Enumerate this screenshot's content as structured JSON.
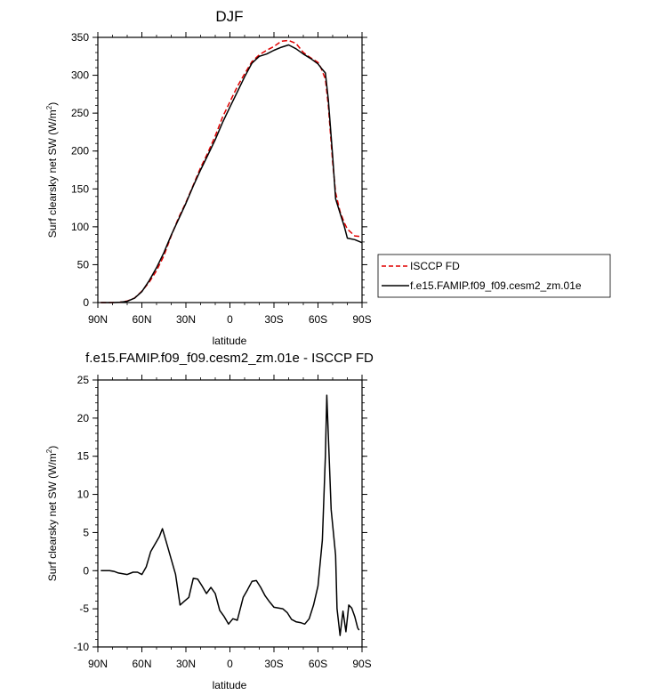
{
  "chart_data": [
    {
      "type": "line",
      "title": "DJF",
      "xlabel": "latitude",
      "ylabel": "Surf clearsky net SW (W/m²)",
      "ylabel_main": "Surf clearsky net SW (W/m",
      "ylabel_sup": "2",
      "ylabel_close": ")",
      "xlim": [
        -90,
        90
      ],
      "ylim": [
        0,
        350
      ],
      "x_ticks": [
        -90,
        -60,
        -30,
        0,
        30,
        60,
        90
      ],
      "x_tick_labels": [
        "90N",
        "60N",
        "30N",
        "0",
        "30S",
        "60S",
        "90S"
      ],
      "y_ticks": [
        0,
        50,
        100,
        150,
        200,
        250,
        300,
        350
      ],
      "y_tick_labels": [
        "0",
        "50",
        "100",
        "150",
        "200",
        "250",
        "300",
        "350"
      ],
      "legend": "outside right",
      "series": [
        {
          "name": "ISCCP FD",
          "color": "#e00000",
          "dash": "dashed",
          "x": [
            -88,
            -80,
            -75,
            -70,
            -65,
            -60,
            -55,
            -50,
            -45,
            -40,
            -35,
            -30,
            -25,
            -20,
            -15,
            -10,
            -5,
            0,
            5,
            10,
            15,
            20,
            25,
            30,
            35,
            40,
            45,
            50,
            55,
            60,
            62,
            65,
            67,
            70,
            72,
            75,
            78,
            80,
            85,
            90
          ],
          "values": [
            0,
            0,
            0.5,
            2,
            6,
            15,
            27,
            42,
            62,
            88,
            112,
            132,
            155,
            178,
            198,
            220,
            245,
            265,
            285,
            302,
            318,
            327,
            333,
            338,
            345,
            346,
            342,
            330,
            323,
            317,
            310,
            295,
            260,
            185,
            145,
            120,
            105,
            97,
            88,
            87
          ]
        },
        {
          "name": "f.e15.FAMIP.f09_f09.cesm2_zm.01e",
          "color": "#000000",
          "dash": "solid",
          "x": [
            -88,
            -80,
            -75,
            -70,
            -65,
            -60,
            -55,
            -50,
            -45,
            -40,
            -35,
            -30,
            -25,
            -20,
            -15,
            -10,
            -5,
            0,
            5,
            10,
            15,
            20,
            25,
            30,
            35,
            40,
            45,
            50,
            55,
            60,
            62,
            65,
            67,
            70,
            72,
            75,
            78,
            80,
            85,
            90
          ],
          "values": [
            0,
            0,
            0.5,
            1.6,
            5.7,
            14.5,
            29,
            46,
            66,
            89,
            110,
            131,
            154,
            175,
            195,
            215,
            238,
            258,
            278,
            298,
            316,
            325,
            328,
            333,
            337,
            340,
            335,
            328,
            322,
            315,
            310,
            303,
            268,
            193,
            137,
            118,
            100,
            85,
            83,
            79
          ]
        }
      ]
    },
    {
      "type": "line",
      "title": "f.e15.FAMIP.f09_f09.cesm2_zm.01e - ISCCP FD",
      "xlabel": "latitude",
      "ylabel": "Surf clearsky net SW (W/m²)",
      "ylabel_main": "Surf clearsky net SW (W/m",
      "ylabel_sup": "2",
      "ylabel_close": ")",
      "xlim": [
        -90,
        90
      ],
      "ylim": [
        -10,
        25
      ],
      "x_ticks": [
        -90,
        -60,
        -30,
        0,
        30,
        60,
        90
      ],
      "x_tick_labels": [
        "90N",
        "60N",
        "30N",
        "0",
        "30S",
        "60S",
        "90S"
      ],
      "y_ticks": [
        -10,
        -5,
        0,
        5,
        10,
        15,
        20,
        25
      ],
      "y_tick_labels": [
        "-10",
        "-5",
        "0",
        "5",
        "10",
        "15",
        "20",
        "25"
      ],
      "series": [
        {
          "color": "#000000",
          "dash": "solid",
          "x": [
            -88,
            -82,
            -79,
            -76,
            -73,
            -70,
            -66,
            -63,
            -60,
            -57,
            -54,
            -51,
            -48,
            -46,
            -43,
            -40,
            -37,
            -34,
            -31,
            -28,
            -25,
            -22,
            -19,
            -16,
            -13,
            -10,
            -7,
            -4,
            -1,
            2,
            5,
            9,
            12,
            15,
            18,
            21,
            24,
            27,
            30,
            33,
            36,
            39,
            42,
            45,
            48,
            51,
            54,
            57,
            60,
            63,
            65,
            66,
            69,
            72,
            73,
            75,
            77,
            79,
            81,
            83,
            85,
            87,
            88
          ],
          "values": [
            0,
            0,
            -0.1,
            -0.3,
            -0.4,
            -0.5,
            -0.2,
            -0.2,
            -0.5,
            0.5,
            2.5,
            3.5,
            4.5,
            5.5,
            3.5,
            1.5,
            -0.5,
            -4.5,
            -4,
            -3.5,
            -1,
            -1.1,
            -2,
            -3,
            -2.2,
            -3,
            -5.2,
            -6,
            -7,
            -6.3,
            -6.5,
            -3.5,
            -2.5,
            -1.4,
            -1.3,
            -2.2,
            -3.3,
            -4.1,
            -4.8,
            -4.9,
            -5,
            -5.5,
            -6.4,
            -6.7,
            -6.8,
            -7,
            -6.3,
            -4.5,
            -2,
            4,
            15,
            23,
            8,
            2,
            -5,
            -8.5,
            -5.3,
            -8,
            -4.5,
            -4.9,
            -6,
            -7.5,
            -7.8
          ]
        }
      ]
    }
  ]
}
